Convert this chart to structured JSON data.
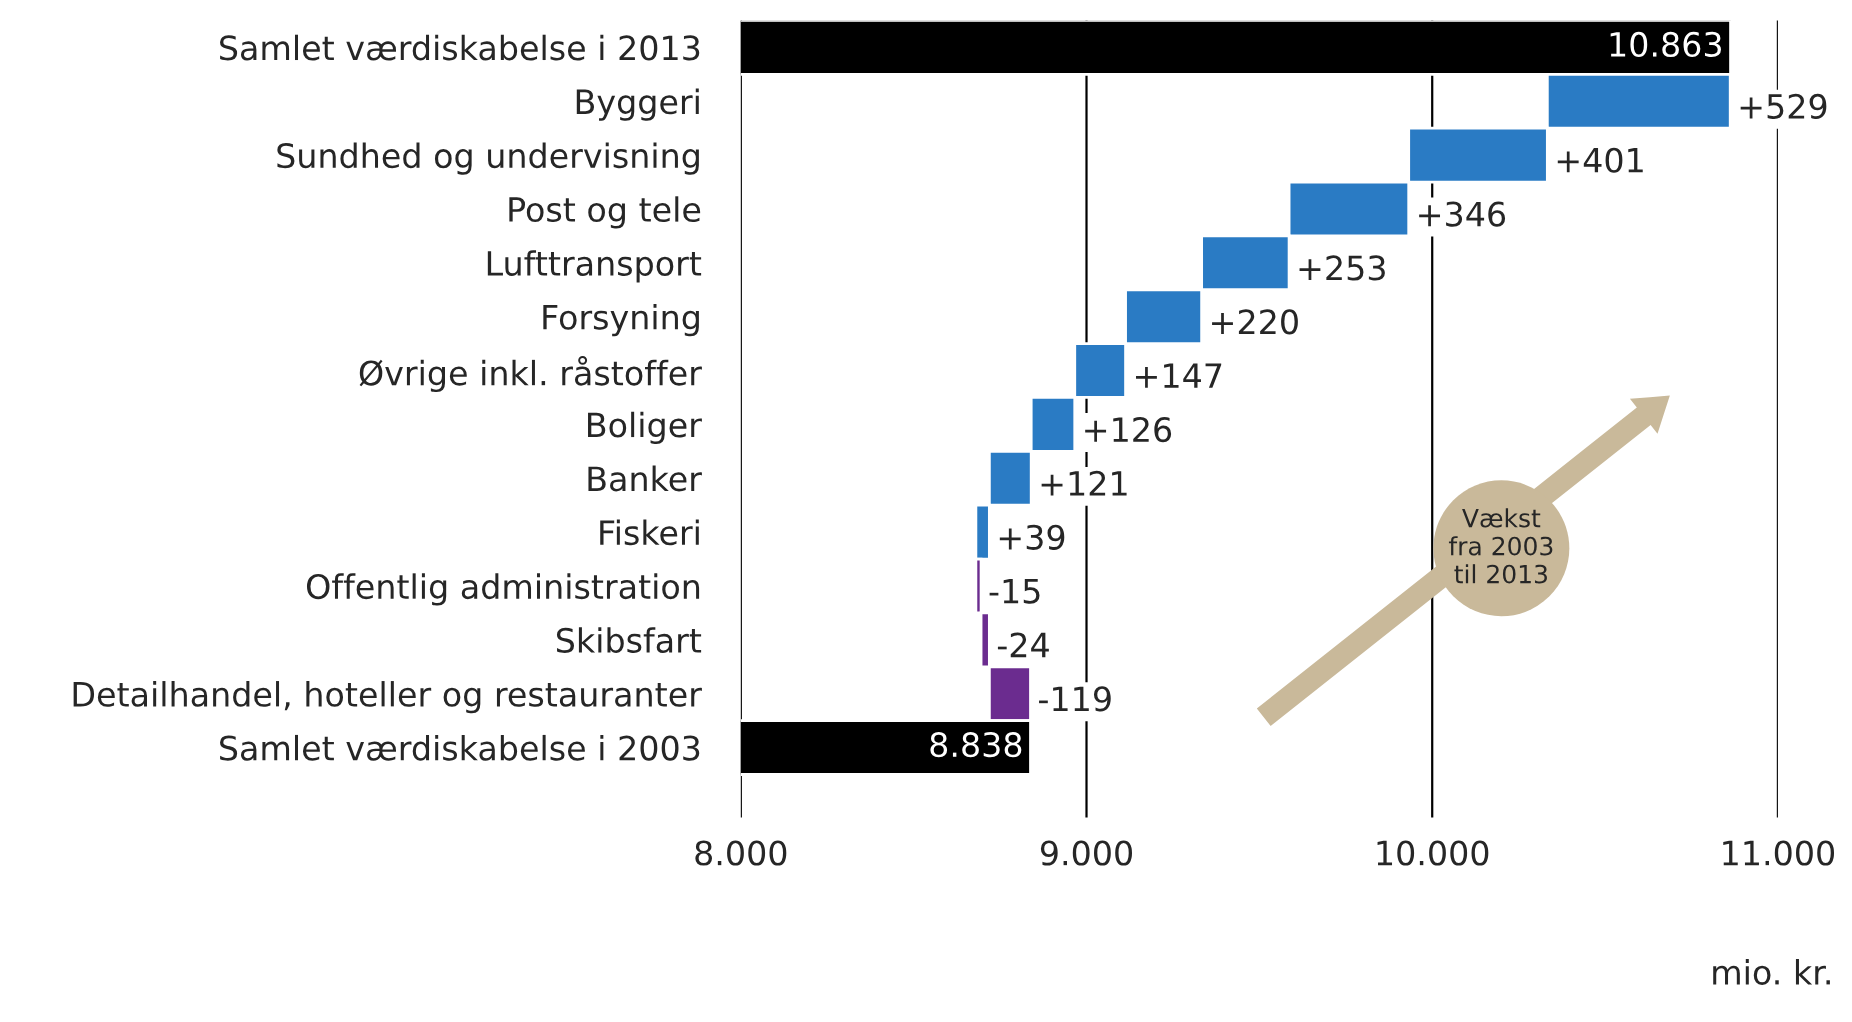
{
  "chart_data": {
    "type": "bar",
    "orientation": "horizontal",
    "categories": [
      "Samlet værdiskabelse i 2013",
      "Byggeri",
      "Sundhed og undervisning",
      "Post og tele",
      "Lufttransport",
      "Forsyning",
      "Øvrige inkl. råstoffer",
      "Boliger",
      "Banker",
      "Fiskeri",
      "Offentlig administration",
      "Skibsfart",
      "Detailhandel, hoteller og restauranter",
      "Samlet værdiskabelse i 2003"
    ],
    "values": [
      10863,
      529,
      401,
      346,
      253,
      220,
      147,
      126,
      121,
      39,
      -15,
      -24,
      -119,
      8838
    ],
    "base": [
      null,
      10333,
      9932,
      9586,
      9333,
      9113,
      8966,
      8840,
      8719,
      8680,
      8695,
      8719,
      8838,
      null
    ],
    "colors": [
      "#000000",
      "#2a7bc4",
      "#2a7bc4",
      "#2a7bc4",
      "#2a7bc4",
      "#2a7bc4",
      "#2a7bc4",
      "#2a7bc4",
      "#2a7bc4",
      "#2a7bc4",
      "#6b2c8f",
      "#6b2c8f",
      "#6b2c8f",
      "#000000"
    ],
    "value_labels": [
      "10.863",
      "+529",
      "+401",
      "+346",
      "+253",
      "+220",
      "+147",
      "+126",
      "+121",
      "+39",
      "-15",
      "-24",
      "-119",
      "8.838"
    ],
    "xlim": [
      8000,
      11000
    ],
    "xticks": [
      {
        "value": 8000,
        "label": "8.000"
      },
      {
        "value": 9000,
        "label": "9.000"
      },
      {
        "value": 10000,
        "label": "10.000"
      },
      {
        "value": 11000,
        "label": "11.000"
      }
    ],
    "xlabel": "mio. kr.",
    "grid": "x",
    "annotations": [
      "Vækst\nfra 2003\ntil 2013"
    ]
  }
}
